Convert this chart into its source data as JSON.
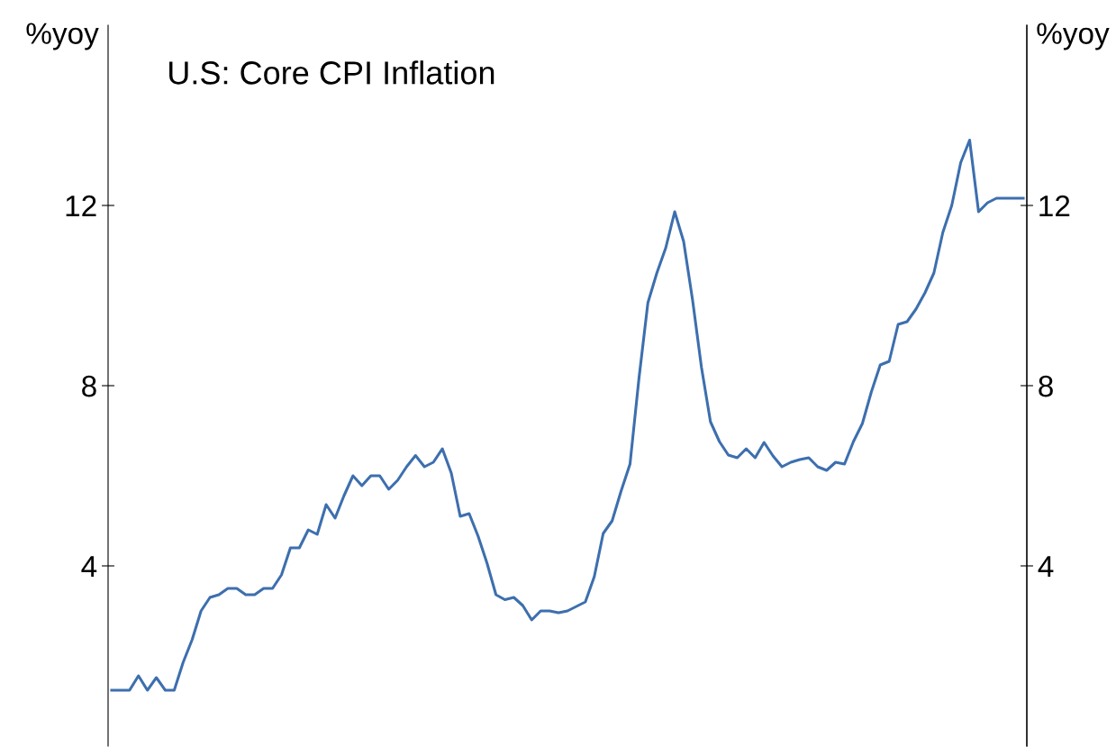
{
  "chart_data": {
    "type": "line",
    "title": "U.S: Core CPI Inflation",
    "ylabel": "%yoy",
    "y2label": "%yoy",
    "categories": [
      null,
      null,
      null,
      null,
      null,
      null,
      null,
      null,
      null,
      null,
      null,
      null,
      null,
      null,
      null,
      null,
      null,
      null,
      null,
      null,
      null,
      null,
      null,
      null,
      null,
      null,
      null,
      null,
      null,
      null,
      null,
      null,
      null,
      null,
      null,
      null,
      null,
      null,
      null,
      null,
      null,
      null,
      null,
      null,
      null,
      null,
      null,
      null,
      null,
      null,
      null,
      null,
      null,
      null,
      null,
      null,
      null,
      null,
      null,
      null,
      null,
      null,
      null,
      null,
      null,
      null,
      null,
      null,
      null,
      null,
      null,
      null,
      null,
      null,
      null,
      null,
      null,
      null,
      null,
      null,
      null,
      null,
      null,
      null,
      null,
      null,
      null,
      null,
      null,
      null,
      null,
      null,
      null,
      null,
      null,
      null,
      null,
      null,
      null,
      null,
      null,
      null,
      null
    ],
    "series": [
      {
        "color": "#3d6fae",
        "values": [
          1.24,
          1.24,
          1.24,
          1.56,
          1.24,
          1.52,
          1.24,
          1.24,
          1.86,
          2.36,
          3.0,
          3.3,
          3.36,
          3.5,
          3.5,
          3.36,
          3.36,
          3.5,
          3.5,
          3.8,
          4.4,
          4.4,
          4.8,
          4.7,
          5.36,
          5.06,
          5.56,
          6.0,
          5.78,
          6.0,
          6.0,
          5.7,
          5.9,
          6.2,
          6.45,
          6.2,
          6.3,
          6.6,
          6.06,
          5.1,
          5.16,
          4.66,
          4.06,
          3.36,
          3.25,
          3.3,
          3.12,
          2.8,
          3.0,
          3.0,
          2.96,
          3.0,
          3.1,
          3.2,
          3.76,
          4.72,
          5.0,
          5.66,
          6.26,
          8.16,
          9.84,
          10.5,
          11.06,
          11.86,
          11.2,
          9.9,
          8.4,
          7.2,
          6.76,
          6.46,
          6.4,
          6.6,
          6.4,
          6.74,
          6.44,
          6.2,
          6.3,
          6.36,
          6.4,
          6.2,
          6.12,
          6.3,
          6.26,
          6.76,
          7.16,
          7.86,
          8.46,
          8.54,
          9.36,
          9.42,
          9.7,
          10.06,
          10.5,
          11.4,
          12.0,
          12.95,
          13.45,
          11.86,
          12.06,
          12.16,
          12.16,
          12.16,
          12.16
        ]
      }
    ],
    "ylim": [
      0,
      16
    ],
    "yticks": [
      4,
      8,
      12
    ],
    "y2lim": [
      0,
      16
    ],
    "y2ticks": [
      4,
      8,
      12
    ],
    "tick_labels": "y",
    "legend": false,
    "marker": "none",
    "line_style": "solid"
  }
}
